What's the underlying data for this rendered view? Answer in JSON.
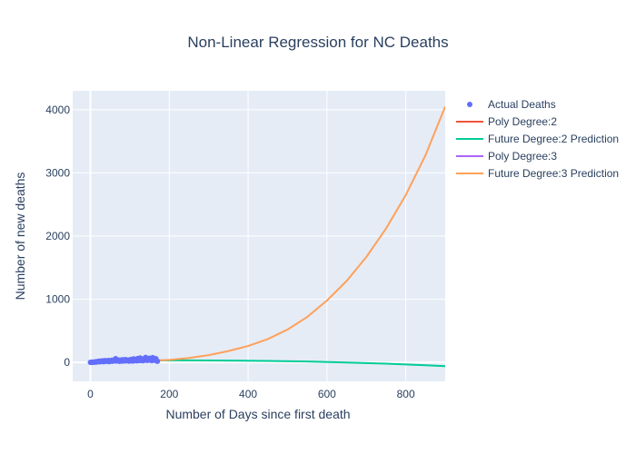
{
  "chart_data": {
    "type": "line",
    "title": "Non-Linear Regression for NC Deaths",
    "xlabel": "Number of Days since first death",
    "ylabel": "Number of new deaths",
    "xlim": [
      -45,
      900
    ],
    "ylim": [
      -300,
      4300
    ],
    "x_ticks": [
      0,
      200,
      400,
      600,
      800
    ],
    "y_ticks": [
      0,
      1000,
      2000,
      3000,
      4000
    ],
    "grid": true,
    "legend_position": "top-right",
    "plot_background": "#E5ECF6",
    "series": [
      {
        "name": "Actual Deaths",
        "mode": "markers",
        "color": "#636EFA",
        "x": [
          0,
          3,
          5,
          8,
          10,
          12,
          14,
          16,
          18,
          20,
          22,
          24,
          26,
          28,
          30,
          32,
          34,
          36,
          38,
          40,
          42,
          44,
          46,
          48,
          50,
          52,
          54,
          56,
          58,
          60,
          62,
          64,
          66,
          68,
          70,
          72,
          74,
          76,
          78,
          80,
          82,
          84,
          86,
          88,
          90,
          92,
          94,
          96,
          98,
          100,
          102,
          104,
          106,
          108,
          110,
          112,
          114,
          116,
          118,
          120,
          122,
          124,
          126,
          128,
          130,
          132,
          134,
          136,
          138,
          140,
          142,
          144,
          146,
          148,
          150,
          152,
          154,
          156,
          158,
          160,
          162,
          164,
          166,
          168,
          170
        ],
        "y": [
          1,
          0,
          3,
          5,
          2,
          8,
          10,
          6,
          14,
          12,
          20,
          9,
          18,
          22,
          15,
          25,
          11,
          19,
          28,
          21,
          16,
          24,
          30,
          13,
          26,
          20,
          35,
          18,
          23,
          40,
          27,
          60,
          22,
          33,
          29,
          38,
          17,
          31,
          25,
          42,
          20,
          36,
          28,
          45,
          24,
          39,
          30,
          34,
          19,
          41,
          26,
          48,
          33,
          21,
          55,
          37,
          29,
          44,
          25,
          62,
          35,
          28,
          70,
          40,
          31,
          49,
          27,
          58,
          36,
          80,
          43,
          30,
          52,
          38,
          66,
          34,
          47,
          29,
          75,
          41,
          55,
          33,
          60,
          25,
          18
        ]
      },
      {
        "name": "Poly Degree:2",
        "mode": "lines",
        "color": "#EF553B",
        "x": [
          0,
          20,
          40,
          60,
          80,
          100,
          120,
          140,
          160,
          170
        ],
        "y": [
          8,
          13,
          17,
          21,
          24,
          27,
          29,
          31,
          32,
          33
        ]
      },
      {
        "name": "Future Degree:2 Prediction",
        "mode": "lines",
        "color": "#00CC96",
        "x": [
          170,
          250,
          350,
          450,
          550,
          650,
          750,
          850,
          900
        ],
        "y": [
          33,
          32,
          29,
          24,
          15,
          -2,
          -20,
          -45,
          -60
        ]
      },
      {
        "name": "Poly Degree:3",
        "mode": "lines",
        "color": "#AB63FA",
        "x": [
          0,
          20,
          40,
          60,
          80,
          100,
          120,
          140,
          160,
          170
        ],
        "y": [
          5,
          10,
          15,
          19,
          23,
          26,
          29,
          31,
          32,
          33
        ]
      },
      {
        "name": "Future Degree:3 Prediction",
        "mode": "lines",
        "color": "#FFA15A",
        "x": [
          170,
          200,
          250,
          300,
          350,
          400,
          450,
          500,
          550,
          600,
          650,
          700,
          750,
          800,
          850,
          900
        ],
        "y": [
          33,
          40,
          70,
          115,
          180,
          260,
          370,
          520,
          720,
          980,
          1290,
          1670,
          2120,
          2650,
          3280,
          4050
        ]
      }
    ]
  }
}
